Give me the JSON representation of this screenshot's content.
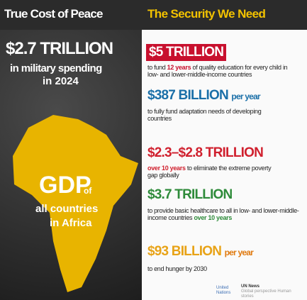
{
  "left": {
    "title": "True Cost of Peace",
    "amount": "$2.7 TRILLION",
    "line1": "in military spending",
    "line2": "in 2024",
    "gdp": "GDP",
    "of": "of",
    "countries": "all countries",
    "region": "in Africa"
  },
  "right": {
    "title": "The Security We Need",
    "items": [
      {
        "amount": "$5 TRILLION",
        "before": "to fund",
        "highlight": "12 years",
        "after": "of quality education for every child in low- and lower-middle-income countries"
      },
      {
        "amount": "$387 BILLION",
        "unit": "per year",
        "before": "to fully fund adaptation needs of developing countries"
      },
      {
        "amount": "$2.3–$2.8 TRILLION",
        "highlight": "over 10 years",
        "after": "to eliminate the extreme poverty gap globally"
      },
      {
        "amount": "$3.7 TRILLION",
        "before": "to provide basic healthcare to all in low- and lower-middle-income countries",
        "highlight": "over 10 years"
      },
      {
        "amount": "$93 BILLION",
        "unit": "per year",
        "before": "to end hunger by 2030"
      }
    ]
  },
  "footer": {
    "un": "United Nations",
    "news": "UN News",
    "tagline": "Global perspective Human stories"
  }
}
